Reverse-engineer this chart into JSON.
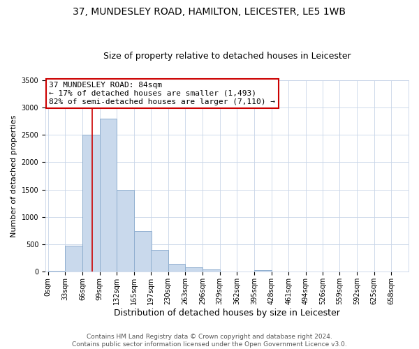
{
  "title1": "37, MUNDESLEY ROAD, HAMILTON, LEICESTER, LE5 1WB",
  "title2": "Size of property relative to detached houses in Leicester",
  "xlabel": "Distribution of detached houses by size in Leicester",
  "ylabel": "Number of detached properties",
  "bar_left_edges": [
    0,
    33,
    66,
    99,
    132,
    165,
    197,
    230,
    263,
    296,
    329,
    362,
    395,
    428,
    461,
    494,
    526,
    559,
    592,
    625
  ],
  "bar_widths": [
    33,
    33,
    33,
    33,
    33,
    33,
    33,
    33,
    33,
    33,
    33,
    33,
    33,
    33,
    33,
    33,
    33,
    33,
    33,
    33
  ],
  "bar_heights": [
    20,
    480,
    2500,
    2800,
    1500,
    750,
    400,
    150,
    80,
    50,
    0,
    0,
    30,
    0,
    0,
    0,
    0,
    0,
    0,
    0
  ],
  "bar_color": "#c9d9ec",
  "bar_edgecolor": "#8faecf",
  "bar_linewidth": 0.7,
  "vline_x": 84,
  "vline_color": "#cc0000",
  "vline_linewidth": 1.2,
  "ylim": [
    0,
    3500
  ],
  "yticks": [
    0,
    500,
    1000,
    1500,
    2000,
    2500,
    3000,
    3500
  ],
  "xlim": [
    -5,
    691
  ],
  "xtick_labels": [
    "0sqm",
    "33sqm",
    "66sqm",
    "99sqm",
    "132sqm",
    "165sqm",
    "197sqm",
    "230sqm",
    "263sqm",
    "296sqm",
    "329sqm",
    "362sqm",
    "395sqm",
    "428sqm",
    "461sqm",
    "494sqm",
    "526sqm",
    "559sqm",
    "592sqm",
    "625sqm",
    "658sqm"
  ],
  "xtick_positions": [
    0,
    33,
    66,
    99,
    132,
    165,
    197,
    230,
    263,
    296,
    329,
    362,
    395,
    428,
    461,
    494,
    526,
    559,
    592,
    625,
    658
  ],
  "annotation_title": "37 MUNDESLEY ROAD: 84sqm",
  "annotation_line1": "← 17% of detached houses are smaller (1,493)",
  "annotation_line2": "82% of semi-detached houses are larger (7,110) →",
  "annotation_box_edgecolor": "#cc0000",
  "annotation_box_facecolor": "#ffffff",
  "footer1": "Contains HM Land Registry data © Crown copyright and database right 2024.",
  "footer2": "Contains public sector information licensed under the Open Government Licence v3.0.",
  "bg_color": "#ffffff",
  "grid_color": "#c8d4e8",
  "title1_fontsize": 10,
  "title2_fontsize": 9,
  "xlabel_fontsize": 9,
  "ylabel_fontsize": 8,
  "tick_fontsize": 7,
  "footer_fontsize": 6.5,
  "annotation_fontsize": 8
}
